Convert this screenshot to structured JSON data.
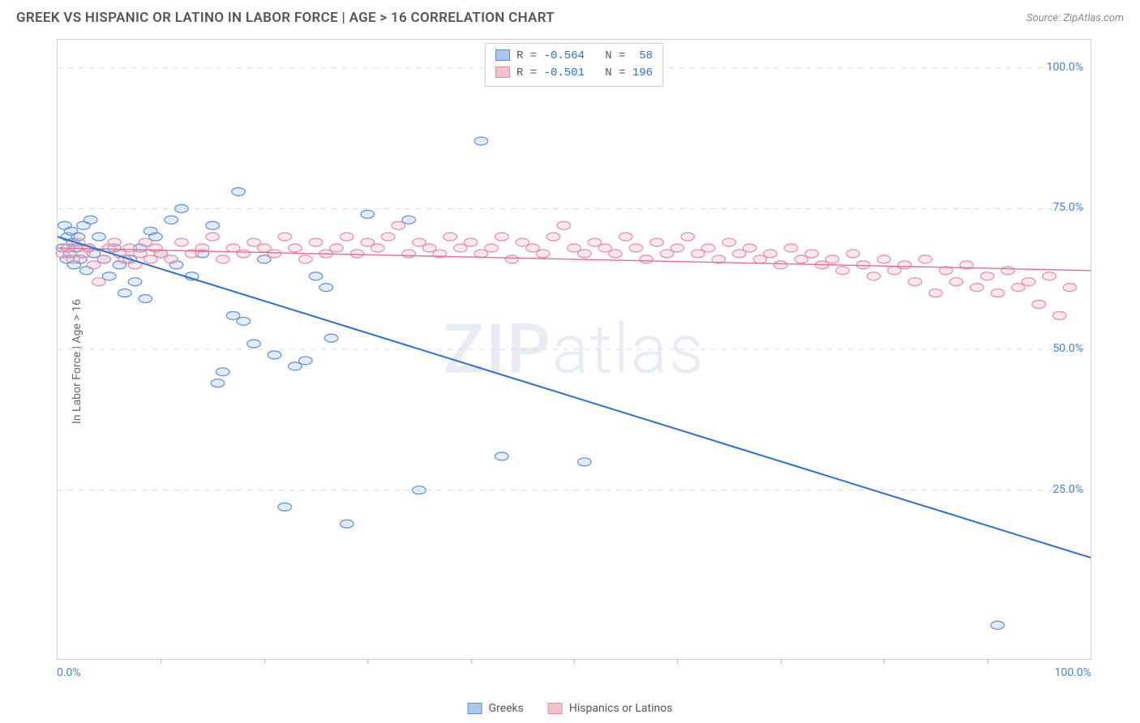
{
  "header": {
    "title": "GREEK VS HISPANIC OR LATINO IN LABOR FORCE | AGE > 16 CORRELATION CHART",
    "source_prefix": "Source: ",
    "source_name": "ZipAtlas.com"
  },
  "chart": {
    "type": "scatter",
    "ylabel": "In Labor Force | Age > 16",
    "xlim": [
      0,
      100
    ],
    "ylim": [
      -5,
      105
    ],
    "xtick_marks": [
      10,
      20,
      30,
      40,
      50,
      60,
      70,
      80,
      90
    ],
    "yticks": [
      {
        "v": 25,
        "label": "25.0%"
      },
      {
        "v": 50,
        "label": "50.0%"
      },
      {
        "v": 75,
        "label": "75.0%"
      },
      {
        "v": 100,
        "label": "100.0%"
      }
    ],
    "x_left_label": "0.0%",
    "x_right_label": "100.0%",
    "background_color": "#ffffff",
    "grid_color": "#d8d8d8",
    "border_color": "#d0d0d0",
    "tick_color": "#4a7fd8",
    "marker_radius": 6.5,
    "marker_stroke_width": 1.2,
    "marker_fill_opacity": 0.35,
    "watermark": {
      "zip": "ZIP",
      "atlas": "atlas",
      "color": "rgba(120,150,190,0.18)"
    },
    "stats": [
      {
        "swatch_fill": "#a8c6ee",
        "swatch_stroke": "#5d8fd6",
        "r": "-0.564",
        "n": "58"
      },
      {
        "swatch_fill": "#f3c1cc",
        "swatch_stroke": "#e98aa2",
        "r": "-0.501",
        "n": "196"
      }
    ],
    "stats_labels": {
      "r": "R =",
      "n": "N ="
    },
    "series": [
      {
        "name": "Greeks",
        "fill": "#a8c6ee",
        "stroke": "#5d8fd6",
        "trend": {
          "x1": 0,
          "y1": 70,
          "x2": 100,
          "y2": 13,
          "color": "#2a6fd6",
          "width": 2
        },
        "points": [
          [
            0.5,
            68
          ],
          [
            0.7,
            72
          ],
          [
            0.9,
            66
          ],
          [
            1.0,
            70
          ],
          [
            1.2,
            67
          ],
          [
            1.3,
            71
          ],
          [
            1.5,
            69
          ],
          [
            1.6,
            65
          ],
          [
            1.8,
            68
          ],
          [
            2.0,
            70
          ],
          [
            2.2,
            66
          ],
          [
            2.5,
            72
          ],
          [
            2.8,
            64
          ],
          [
            3.0,
            68
          ],
          [
            3.2,
            73
          ],
          [
            3.5,
            67
          ],
          [
            4.0,
            70
          ],
          [
            4.5,
            66
          ],
          [
            5.0,
            63
          ],
          [
            5.5,
            68
          ],
          [
            6.0,
            65
          ],
          [
            6.5,
            60
          ],
          [
            7.0,
            66
          ],
          [
            7.5,
            62
          ],
          [
            8.0,
            68
          ],
          [
            8.5,
            59
          ],
          [
            9.0,
            71
          ],
          [
            9.5,
            70
          ],
          [
            10.0,
            67
          ],
          [
            11.0,
            73
          ],
          [
            11.5,
            65
          ],
          [
            12.0,
            75
          ],
          [
            13.0,
            63
          ],
          [
            14.0,
            67
          ],
          [
            15.0,
            72
          ],
          [
            15.5,
            44
          ],
          [
            16.0,
            46
          ],
          [
            17.0,
            56
          ],
          [
            17.5,
            78
          ],
          [
            18.0,
            55
          ],
          [
            19.0,
            51
          ],
          [
            20.0,
            66
          ],
          [
            21.0,
            49
          ],
          [
            22.0,
            22
          ],
          [
            23.0,
            47
          ],
          [
            24.0,
            48
          ],
          [
            25.0,
            63
          ],
          [
            26.0,
            61
          ],
          [
            26.5,
            52
          ],
          [
            28.0,
            19
          ],
          [
            30.0,
            74
          ],
          [
            34.0,
            73
          ],
          [
            35.0,
            25
          ],
          [
            41.0,
            87
          ],
          [
            43.0,
            31
          ],
          [
            51.0,
            30
          ],
          [
            91.0,
            1
          ]
        ]
      },
      {
        "name": "Hispanics or Latinos",
        "fill": "#f3c1cc",
        "stroke": "#e98aa2",
        "trend": {
          "x1": 0,
          "y1": 68,
          "x2": 100,
          "y2": 64,
          "color": "#e36f8f",
          "width": 1.4
        },
        "points": [
          [
            0.5,
            67
          ],
          [
            1.0,
            68
          ],
          [
            1.5,
            66
          ],
          [
            2.0,
            69
          ],
          [
            2.5,
            67
          ],
          [
            3.0,
            68
          ],
          [
            3.5,
            65
          ],
          [
            4.0,
            62
          ],
          [
            4.5,
            66
          ],
          [
            5.0,
            68
          ],
          [
            5.5,
            69
          ],
          [
            6.0,
            67
          ],
          [
            6.5,
            66
          ],
          [
            7.0,
            68
          ],
          [
            7.5,
            65
          ],
          [
            8.0,
            67
          ],
          [
            8.5,
            69
          ],
          [
            9.0,
            66
          ],
          [
            9.5,
            68
          ],
          [
            10.0,
            67
          ],
          [
            11.0,
            66
          ],
          [
            12.0,
            69
          ],
          [
            13.0,
            67
          ],
          [
            14.0,
            68
          ],
          [
            15.0,
            70
          ],
          [
            16.0,
            66
          ],
          [
            17.0,
            68
          ],
          [
            18.0,
            67
          ],
          [
            19.0,
            69
          ],
          [
            20.0,
            68
          ],
          [
            21.0,
            67
          ],
          [
            22.0,
            70
          ],
          [
            23.0,
            68
          ],
          [
            24.0,
            66
          ],
          [
            25.0,
            69
          ],
          [
            26.0,
            67
          ],
          [
            27.0,
            68
          ],
          [
            28.0,
            70
          ],
          [
            29.0,
            67
          ],
          [
            30.0,
            69
          ],
          [
            31.0,
            68
          ],
          [
            32.0,
            70
          ],
          [
            33.0,
            72
          ],
          [
            34.0,
            67
          ],
          [
            35.0,
            69
          ],
          [
            36.0,
            68
          ],
          [
            37.0,
            67
          ],
          [
            38.0,
            70
          ],
          [
            39.0,
            68
          ],
          [
            40.0,
            69
          ],
          [
            41.0,
            67
          ],
          [
            42.0,
            68
          ],
          [
            43.0,
            70
          ],
          [
            44.0,
            66
          ],
          [
            45.0,
            69
          ],
          [
            46.0,
            68
          ],
          [
            47.0,
            67
          ],
          [
            48.0,
            70
          ],
          [
            49.0,
            72
          ],
          [
            50.0,
            68
          ],
          [
            51.0,
            67
          ],
          [
            52.0,
            69
          ],
          [
            53.0,
            68
          ],
          [
            54.0,
            67
          ],
          [
            55.0,
            70
          ],
          [
            56.0,
            68
          ],
          [
            57.0,
            66
          ],
          [
            58.0,
            69
          ],
          [
            59.0,
            67
          ],
          [
            60.0,
            68
          ],
          [
            61.0,
            70
          ],
          [
            62.0,
            67
          ],
          [
            63.0,
            68
          ],
          [
            64.0,
            66
          ],
          [
            65.0,
            69
          ],
          [
            66.0,
            67
          ],
          [
            67.0,
            68
          ],
          [
            68.0,
            66
          ],
          [
            69.0,
            67
          ],
          [
            70.0,
            65
          ],
          [
            71.0,
            68
          ],
          [
            72.0,
            66
          ],
          [
            73.0,
            67
          ],
          [
            74.0,
            65
          ],
          [
            75.0,
            66
          ],
          [
            76.0,
            64
          ],
          [
            77.0,
            67
          ],
          [
            78.0,
            65
          ],
          [
            79.0,
            63
          ],
          [
            80.0,
            66
          ],
          [
            81.0,
            64
          ],
          [
            82.0,
            65
          ],
          [
            83.0,
            62
          ],
          [
            84.0,
            66
          ],
          [
            85.0,
            60
          ],
          [
            86.0,
            64
          ],
          [
            87.0,
            62
          ],
          [
            88.0,
            65
          ],
          [
            89.0,
            61
          ],
          [
            90.0,
            63
          ],
          [
            91.0,
            60
          ],
          [
            92.0,
            64
          ],
          [
            93.0,
            61
          ],
          [
            94.0,
            62
          ],
          [
            95.0,
            58
          ],
          [
            96.0,
            63
          ],
          [
            97.0,
            56
          ],
          [
            98.0,
            61
          ]
        ]
      }
    ],
    "legend": [
      {
        "label": "Greeks",
        "fill": "#a8c6ee",
        "stroke": "#5d8fd6"
      },
      {
        "label": "Hispanics or Latinos",
        "fill": "#f3c1cc",
        "stroke": "#e98aa2"
      }
    ]
  }
}
